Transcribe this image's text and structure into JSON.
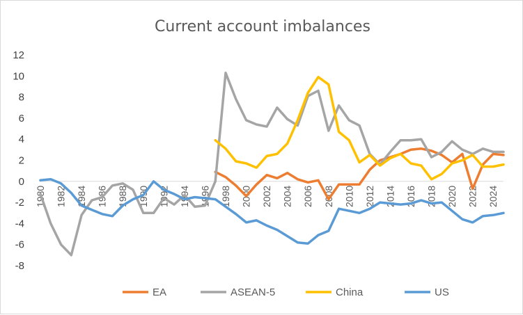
{
  "chart_data": {
    "type": "line",
    "title": "Current account imbalances",
    "xlabel": "",
    "ylabel": "",
    "ylim": [
      -8,
      12
    ],
    "yticks": [
      -8,
      -6,
      -4,
      -2,
      0,
      2,
      4,
      6,
      8,
      10,
      12
    ],
    "xlim": [
      1980,
      2025
    ],
    "xticks": [
      1980,
      1982,
      1984,
      1986,
      1988,
      1990,
      1992,
      1994,
      1996,
      1998,
      2000,
      2002,
      2004,
      2006,
      2008,
      2010,
      2012,
      2014,
      2016,
      2018,
      2020,
      2022,
      2024
    ],
    "grid": false,
    "legend_position": "bottom",
    "series": [
      {
        "name": "EA",
        "color": "#ED7D31",
        "x": [
          1997,
          1998,
          1999,
          2000,
          2001,
          2002,
          2003,
          2004,
          2005,
          2006,
          2007,
          2008,
          2009,
          2010,
          2011,
          2012,
          2013,
          2014,
          2015,
          2016,
          2017,
          2018,
          2019,
          2020,
          2021,
          2022,
          2023,
          2024,
          2025
        ],
        "values": [
          0.9,
          0.4,
          -0.4,
          -1.4,
          -0.3,
          0.6,
          0.3,
          0.8,
          0.2,
          -0.1,
          0.1,
          -1.7,
          -0.3,
          -0.3,
          -0.3,
          1.1,
          2.0,
          2.3,
          2.6,
          3.0,
          3.1,
          2.9,
          2.5,
          1.8,
          2.6,
          -0.7,
          1.6,
          2.6,
          2.5
        ]
      },
      {
        "name": "ASEAN-5",
        "color": "#A5A5A5",
        "x": [
          1980,
          1981,
          1982,
          1983,
          1984,
          1985,
          1986,
          1987,
          1988,
          1989,
          1990,
          1991,
          1992,
          1993,
          1994,
          1995,
          1996,
          1997,
          1998,
          1999,
          2000,
          2001,
          2002,
          2003,
          2004,
          2005,
          2006,
          2007,
          2008,
          2009,
          2010,
          2011,
          2012,
          2013,
          2014,
          2015,
          2016,
          2017,
          2018,
          2019,
          2020,
          2021,
          2022,
          2023,
          2024,
          2025
        ],
        "values": [
          -1.2,
          -4.0,
          -6.0,
          -7.0,
          -3.2,
          -1.8,
          -1.5,
          -0.4,
          -0.2,
          -0.8,
          -3.0,
          -3.0,
          -1.6,
          -2.2,
          -1.3,
          -2.4,
          -2.3,
          0.0,
          10.3,
          7.8,
          5.8,
          5.4,
          5.2,
          7.0,
          5.9,
          5.3,
          8.1,
          8.6,
          4.8,
          7.2,
          5.8,
          5.3,
          2.6,
          1.6,
          2.8,
          3.9,
          3.9,
          4.0,
          2.3,
          2.8,
          3.8,
          3.0,
          2.6,
          3.1,
          2.8,
          2.8
        ]
      },
      {
        "name": "China",
        "color": "#FFC000",
        "x": [
          1997,
          1998,
          1999,
          2000,
          2001,
          2002,
          2003,
          2004,
          2005,
          2006,
          2007,
          2008,
          2009,
          2010,
          2011,
          2012,
          2013,
          2014,
          2015,
          2016,
          2017,
          2018,
          2019,
          2020,
          2021,
          2022,
          2023,
          2024,
          2025
        ],
        "values": [
          3.9,
          3.1,
          1.9,
          1.7,
          1.3,
          2.4,
          2.6,
          3.6,
          5.8,
          8.4,
          9.9,
          9.2,
          4.7,
          3.9,
          1.8,
          2.5,
          1.5,
          2.2,
          2.6,
          1.7,
          1.5,
          0.2,
          0.7,
          1.7,
          2.0,
          2.5,
          1.4,
          1.4,
          1.6
        ]
      },
      {
        "name": "US",
        "color": "#5B9BD5",
        "x": [
          1980,
          1981,
          1982,
          1983,
          1984,
          1985,
          1986,
          1987,
          1988,
          1989,
          1990,
          1991,
          1992,
          1993,
          1994,
          1995,
          1996,
          1997,
          1998,
          1999,
          2000,
          2001,
          2002,
          2003,
          2004,
          2005,
          2006,
          2007,
          2008,
          2009,
          2010,
          2011,
          2012,
          2013,
          2014,
          2015,
          2016,
          2017,
          2018,
          2019,
          2020,
          2021,
          2022,
          2023,
          2024,
          2025
        ],
        "values": [
          0.1,
          0.2,
          -0.2,
          -1.1,
          -2.3,
          -2.7,
          -3.1,
          -3.3,
          -2.3,
          -1.7,
          -1.3,
          0.0,
          -0.8,
          -1.2,
          -1.7,
          -1.5,
          -1.6,
          -1.7,
          -2.4,
          -3.1,
          -3.9,
          -3.7,
          -4.2,
          -4.6,
          -5.2,
          -5.8,
          -5.9,
          -5.1,
          -4.7,
          -2.6,
          -2.8,
          -3.0,
          -2.6,
          -2.0,
          -2.1,
          -2.2,
          -2.1,
          -1.8,
          -2.1,
          -2.0,
          -2.8,
          -3.6,
          -3.9,
          -3.3,
          -3.2,
          -3.0
        ]
      }
    ]
  }
}
